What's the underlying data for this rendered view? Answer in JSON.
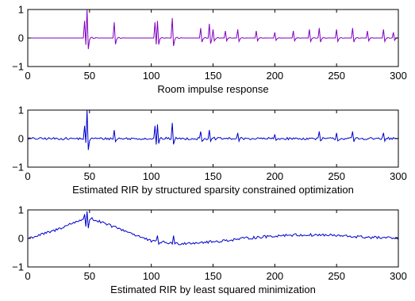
{
  "chart_data": [
    {
      "type": "line",
      "xlabel": "Room impulse response",
      "ylabel": "",
      "xlim": [
        0,
        300
      ],
      "ylim": [
        -1,
        1
      ],
      "xticks": [
        "0",
        "50",
        "100",
        "150",
        "200",
        "250",
        "300"
      ],
      "yticks": [
        "1",
        "0",
        "−1"
      ],
      "grid": false,
      "color": "#8000c0",
      "baseline": 0.0,
      "noise": 0.0,
      "peaks": [
        {
          "x": 46,
          "y": 0.6
        },
        {
          "x": 48,
          "y": 1.0
        },
        {
          "x": 70,
          "y": 0.55
        },
        {
          "x": 103,
          "y": 0.55
        },
        {
          "x": 105,
          "y": 0.6
        },
        {
          "x": 117,
          "y": 0.7
        },
        {
          "x": 140,
          "y": 0.35
        },
        {
          "x": 147,
          "y": 0.5
        },
        {
          "x": 150,
          "y": 0.3
        },
        {
          "x": 160,
          "y": 0.25
        },
        {
          "x": 170,
          "y": 0.3
        },
        {
          "x": 185,
          "y": 0.25
        },
        {
          "x": 200,
          "y": 0.2
        },
        {
          "x": 215,
          "y": 0.25
        },
        {
          "x": 228,
          "y": 0.3
        },
        {
          "x": 236,
          "y": 0.35
        },
        {
          "x": 250,
          "y": 0.3
        },
        {
          "x": 263,
          "y": 0.35
        },
        {
          "x": 275,
          "y": 0.25
        },
        {
          "x": 288,
          "y": 0.3
        },
        {
          "x": 296,
          "y": 0.2
        }
      ]
    },
    {
      "type": "line",
      "xlabel": "Estimated RIR by structured sparsity constrained optimization",
      "ylabel": "",
      "xlim": [
        0,
        300
      ],
      "ylim": [
        -1,
        1
      ],
      "xticks": [
        "0",
        "50",
        "100",
        "150",
        "200",
        "250",
        "300"
      ],
      "yticks": [
        "1",
        "0",
        "−1"
      ],
      "grid": false,
      "color": "#0000cc",
      "baseline": 0.0,
      "noise": 0.04,
      "peaks": [
        {
          "x": 46,
          "y": 0.45
        },
        {
          "x": 48,
          "y": 1.0
        },
        {
          "x": 70,
          "y": 0.3
        },
        {
          "x": 103,
          "y": 0.45
        },
        {
          "x": 105,
          "y": 0.5
        },
        {
          "x": 117,
          "y": 0.55
        },
        {
          "x": 140,
          "y": 0.25
        },
        {
          "x": 147,
          "y": 0.3
        },
        {
          "x": 170,
          "y": 0.2
        },
        {
          "x": 200,
          "y": 0.15
        },
        {
          "x": 236,
          "y": 0.25
        },
        {
          "x": 250,
          "y": 0.2
        },
        {
          "x": 263,
          "y": 0.25
        },
        {
          "x": 288,
          "y": 0.2
        }
      ]
    },
    {
      "type": "line",
      "xlabel": "Estimated RIR by least squared minimization",
      "ylabel": "",
      "xlim": [
        0,
        300
      ],
      "ylim": [
        -1,
        1
      ],
      "xticks": [
        "0",
        "50",
        "100",
        "150",
        "200",
        "250",
        "300"
      ],
      "yticks": [
        "1",
        "0",
        "−1"
      ],
      "grid": false,
      "color": "#0000cc",
      "noise": 0.05,
      "trend": [
        {
          "x": 0,
          "y": 0.0
        },
        {
          "x": 20,
          "y": 0.25
        },
        {
          "x": 40,
          "y": 0.6
        },
        {
          "x": 48,
          "y": 0.75
        },
        {
          "x": 60,
          "y": 0.55
        },
        {
          "x": 80,
          "y": 0.25
        },
        {
          "x": 100,
          "y": -0.1
        },
        {
          "x": 120,
          "y": -0.18
        },
        {
          "x": 150,
          "y": -0.12
        },
        {
          "x": 180,
          "y": 0.02
        },
        {
          "x": 210,
          "y": 0.12
        },
        {
          "x": 240,
          "y": 0.12
        },
        {
          "x": 270,
          "y": 0.05
        },
        {
          "x": 300,
          "y": 0.0
        }
      ],
      "peaks": [
        {
          "x": 46,
          "y": 0.85
        },
        {
          "x": 48,
          "y": 0.95
        },
        {
          "x": 105,
          "y": 0.1
        },
        {
          "x": 118,
          "y": 0.1
        }
      ]
    }
  ]
}
